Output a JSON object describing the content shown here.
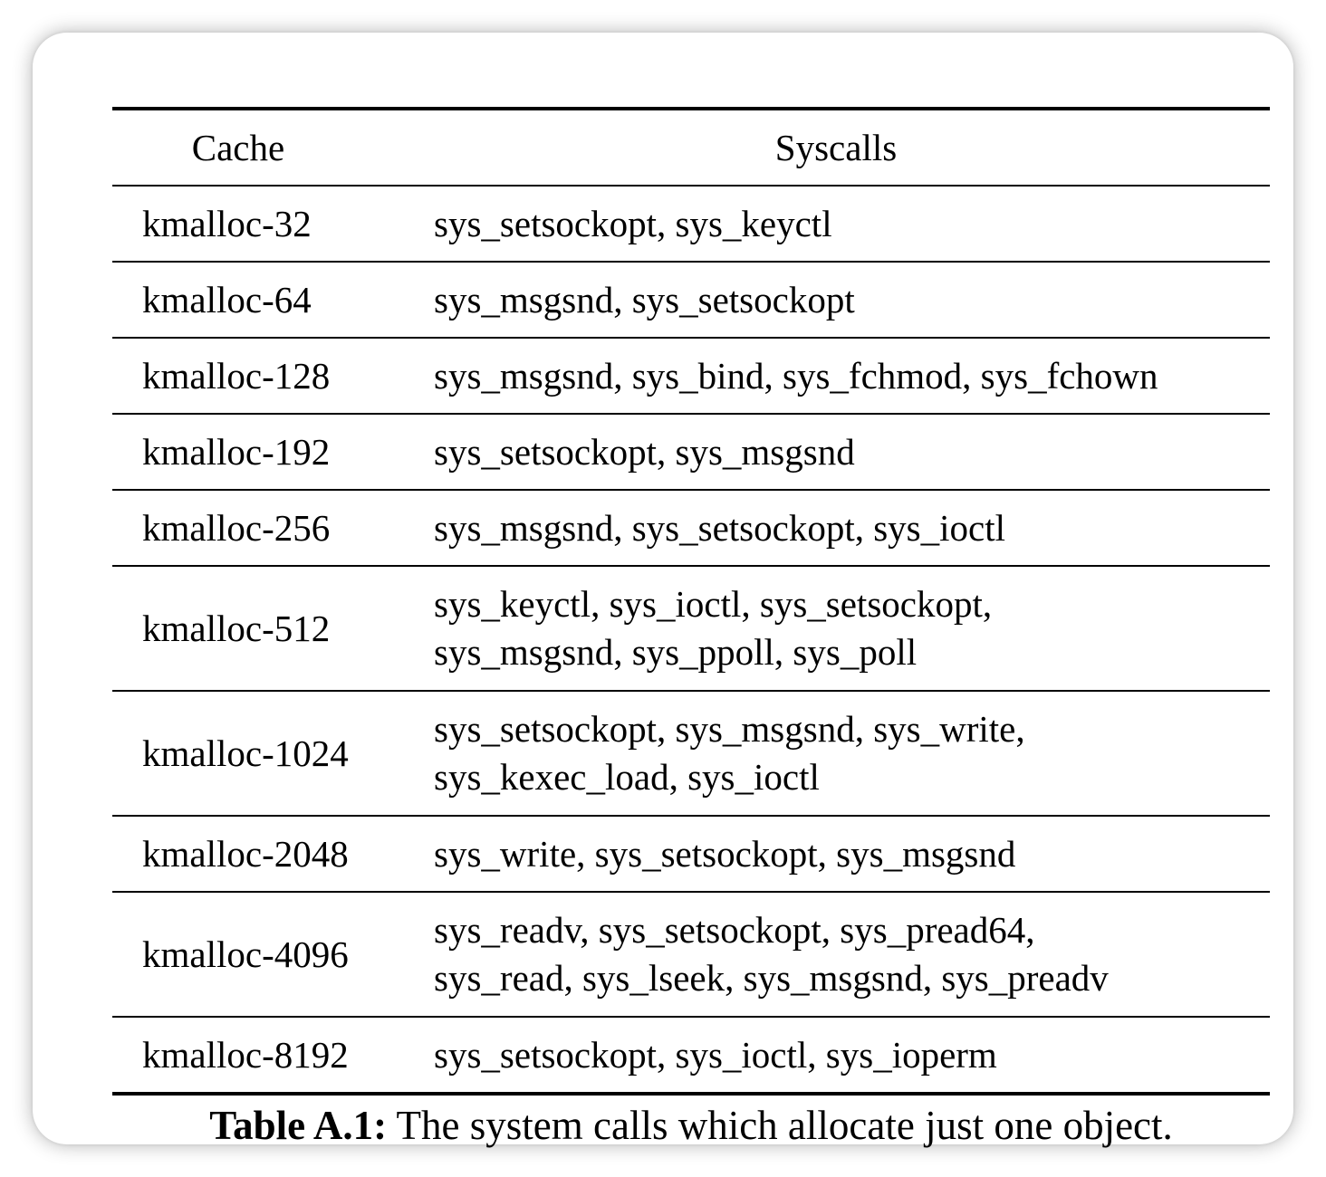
{
  "table": {
    "headers": [
      "Cache",
      "Syscalls"
    ],
    "rows": [
      {
        "cache": "kmalloc-32",
        "lines": [
          "sys_setsockopt, sys_keyctl"
        ]
      },
      {
        "cache": "kmalloc-64",
        "lines": [
          "sys_msgsnd, sys_setsockopt"
        ]
      },
      {
        "cache": "kmalloc-128",
        "lines": [
          "sys_msgsnd, sys_bind, sys_fchmod, sys_fchown"
        ]
      },
      {
        "cache": "kmalloc-192",
        "lines": [
          "sys_setsockopt, sys_msgsnd"
        ]
      },
      {
        "cache": "kmalloc-256",
        "lines": [
          "sys_msgsnd, sys_setsockopt, sys_ioctl"
        ]
      },
      {
        "cache": "kmalloc-512",
        "lines": [
          "sys_keyctl, sys_ioctl, sys_setsockopt,",
          "sys_msgsnd, sys_ppoll, sys_poll"
        ]
      },
      {
        "cache": "kmalloc-1024",
        "lines": [
          "sys_setsockopt, sys_msgsnd, sys_write,",
          "sys_kexec_load, sys_ioctl"
        ]
      },
      {
        "cache": "kmalloc-2048",
        "lines": [
          "sys_write, sys_setsockopt, sys_msgsnd"
        ]
      },
      {
        "cache": "kmalloc-4096",
        "lines": [
          "sys_readv, sys_setsockopt, sys_pread64,",
          "sys_read, sys_lseek, sys_msgsnd, sys_preadv"
        ]
      },
      {
        "cache": "kmalloc-8192",
        "lines": [
          "sys_setsockopt, sys_ioctl, sys_ioperm"
        ]
      }
    ]
  },
  "caption": {
    "label": "Table A.1:",
    "text": " The system calls which allocate just one object."
  }
}
